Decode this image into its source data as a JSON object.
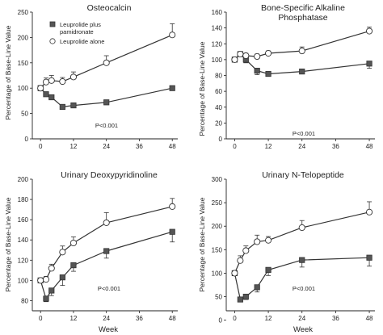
{
  "chart_data": [
    {
      "type": "line",
      "title": "Osteocalcin",
      "title_line2": "",
      "ylabel": "Percentage of Base-Line Value",
      "xlabel": "",
      "xticks": [
        0,
        12,
        24,
        36,
        48
      ],
      "yticks": [
        0,
        50,
        100,
        150,
        200,
        250
      ],
      "xlim": [
        -3,
        50
      ],
      "ylim": [
        0,
        250
      ],
      "pvalue": "P<0.001",
      "legend": [
        "Leuprolide plus",
        "pamidronate",
        "Leuprolide alone"
      ],
      "series": [
        {
          "x": [
            0,
            2,
            4,
            8,
            12,
            24,
            48
          ],
          "values": [
            100,
            88,
            82,
            63,
            66,
            72,
            100
          ],
          "err": [
            5,
            4,
            4,
            4,
            4,
            4,
            4
          ],
          "marker": "square"
        },
        {
          "x": [
            0,
            2,
            4,
            8,
            12,
            24,
            48
          ],
          "values": [
            100,
            112,
            115,
            113,
            122,
            150,
            205
          ],
          "err": [
            5,
            8,
            10,
            8,
            10,
            14,
            22
          ],
          "marker": "circle"
        }
      ]
    },
    {
      "type": "line",
      "title": "Bone-Specific Alkaline",
      "title_line2": "Phosphatase",
      "ylabel": "Percentage of Base-Line Value",
      "xlabel": "",
      "xticks": [
        0,
        12,
        24,
        36,
        48
      ],
      "yticks": [
        0,
        20,
        40,
        60,
        80,
        100,
        120,
        140,
        160
      ],
      "xlim": [
        -3,
        50
      ],
      "ylim": [
        0,
        160
      ],
      "pvalue": "P<0.001",
      "legend": [],
      "series": [
        {
          "x": [
            0,
            2,
            4,
            8,
            12,
            24,
            48
          ],
          "values": [
            100,
            107,
            100,
            86,
            82,
            85,
            95
          ],
          "err": [
            2,
            3,
            4,
            5,
            3,
            3,
            6
          ],
          "marker": "square"
        },
        {
          "x": [
            0,
            2,
            4,
            8,
            12,
            24,
            48
          ],
          "values": [
            100,
            107,
            105,
            104,
            108,
            111,
            136
          ],
          "err": [
            2,
            3,
            3,
            3,
            3,
            5,
            5
          ],
          "marker": "circle"
        }
      ]
    },
    {
      "type": "line",
      "title": "Urinary Deoxypyridinoline",
      "title_line2": "",
      "ylabel": "Percentage of Base-Line Value",
      "xlabel": "Week",
      "xticks": [
        0,
        12,
        24,
        36,
        48
      ],
      "yticks": [
        80,
        100,
        120,
        140,
        160,
        180,
        200
      ],
      "xlim": [
        -3,
        50
      ],
      "ylim": [
        70,
        200
      ],
      "pvalue": "P<0.001",
      "legend": [],
      "series": [
        {
          "x": [
            0,
            2,
            4,
            8,
            12,
            24,
            48
          ],
          "values": [
            100,
            82,
            90,
            103,
            115,
            129,
            148
          ],
          "err": [
            2,
            3,
            5,
            8,
            6,
            7,
            10
          ],
          "marker": "square"
        },
        {
          "x": [
            0,
            2,
            4,
            8,
            12,
            24,
            48
          ],
          "values": [
            100,
            101,
            112,
            128,
            137,
            157,
            173
          ],
          "err": [
            2,
            3,
            4,
            6,
            6,
            10,
            8
          ],
          "marker": "circle"
        }
      ]
    },
    {
      "type": "line",
      "title": "Urinary N-Telopeptide",
      "title_line2": "",
      "ylabel": "Percentage of Base-Line Value",
      "xlabel": "Week",
      "xticks": [
        0,
        12,
        24,
        36,
        48
      ],
      "yticks": [
        0,
        50,
        100,
        150,
        200,
        250,
        300
      ],
      "xlim": [
        -3,
        50
      ],
      "ylim": [
        20,
        300
      ],
      "pvalue": "P<0.001",
      "legend": [],
      "series": [
        {
          "x": [
            0,
            2,
            4,
            8,
            12,
            24,
            48
          ],
          "values": [
            100,
            44,
            50,
            70,
            107,
            128,
            133
          ],
          "err": [
            4,
            5,
            6,
            10,
            12,
            15,
            18
          ],
          "marker": "square"
        },
        {
          "x": [
            0,
            2,
            4,
            8,
            12,
            24,
            48
          ],
          "values": [
            100,
            127,
            148,
            167,
            170,
            197,
            230
          ],
          "err": [
            4,
            10,
            10,
            14,
            8,
            15,
            22
          ],
          "marker": "circle"
        }
      ]
    }
  ]
}
